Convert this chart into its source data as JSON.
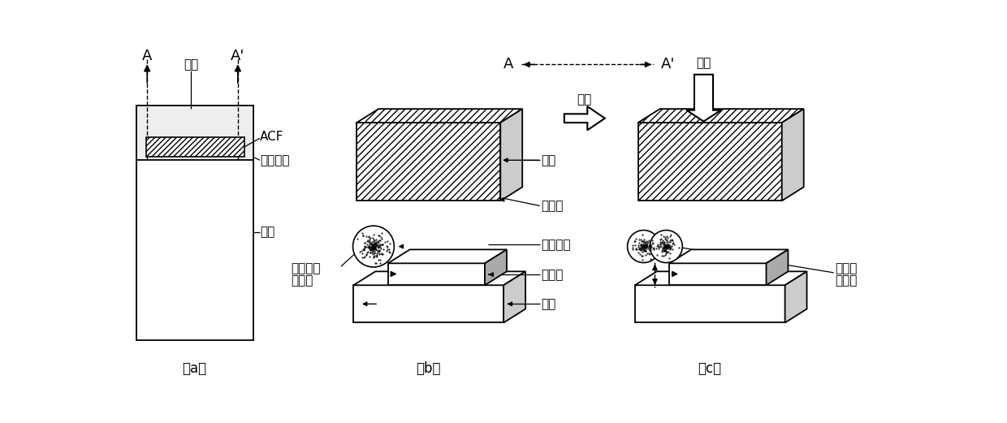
{
  "bg_color": "#ffffff",
  "fig_label_a": "（a）",
  "fig_label_b": "（b）",
  "fig_label_c": "（c）",
  "font_size_label": 13,
  "font_size_text": 11,
  "font_size_caption": 12,
  "font_size_arrow_label": 11
}
